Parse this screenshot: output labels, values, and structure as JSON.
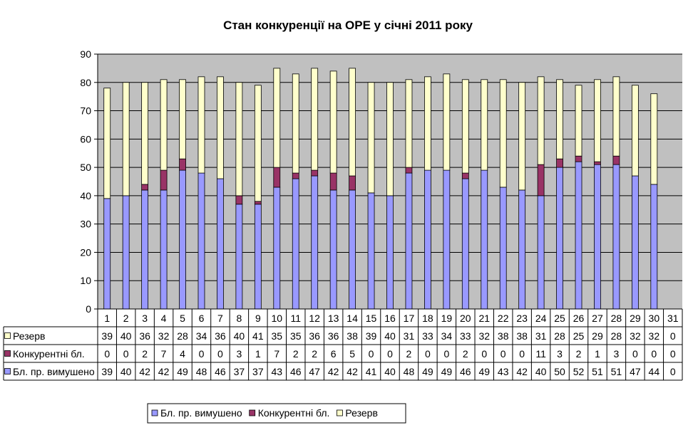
{
  "chart_data": {
    "type": "bar",
    "stacked": true,
    "title": "Стан конкуренції на ОРЕ  у січні 2011 року",
    "ylim": [
      0,
      90
    ],
    "yticks": [
      0,
      10,
      20,
      30,
      40,
      50,
      60,
      70,
      80,
      90
    ],
    "grid": true,
    "legend_position": "bottom",
    "categories": [
      "1",
      "2",
      "3",
      "4",
      "5",
      "6",
      "7",
      "8",
      "9",
      "10",
      "11",
      "12",
      "13",
      "14",
      "15",
      "16",
      "17",
      "18",
      "19",
      "20",
      "21",
      "22",
      "23",
      "24",
      "25",
      "26",
      "27",
      "28",
      "29",
      "30",
      "31"
    ],
    "series": [
      {
        "name": "Бл. пр. вимушено",
        "color": "#9999ff",
        "values": [
          39,
          40,
          42,
          42,
          49,
          48,
          46,
          37,
          37,
          43,
          46,
          47,
          42,
          42,
          41,
          40,
          48,
          49,
          49,
          46,
          49,
          43,
          42,
          40,
          50,
          52,
          51,
          51,
          47,
          44,
          0
        ]
      },
      {
        "name": "Конкурентні бл.",
        "color": "#993366",
        "values": [
          0,
          0,
          2,
          7,
          4,
          0,
          0,
          3,
          1,
          7,
          2,
          2,
          6,
          5,
          0,
          0,
          2,
          0,
          0,
          2,
          0,
          0,
          0,
          11,
          3,
          2,
          1,
          3,
          0,
          0,
          0
        ]
      },
      {
        "name": "Резерв",
        "color": "#ffffcc",
        "values": [
          39,
          40,
          36,
          32,
          28,
          34,
          36,
          40,
          41,
          35,
          35,
          36,
          36,
          38,
          39,
          40,
          31,
          33,
          34,
          33,
          32,
          38,
          38,
          31,
          28,
          25,
          29,
          28,
          32,
          32,
          0
        ]
      }
    ],
    "plot_area_color": "#c0c0c0"
  }
}
